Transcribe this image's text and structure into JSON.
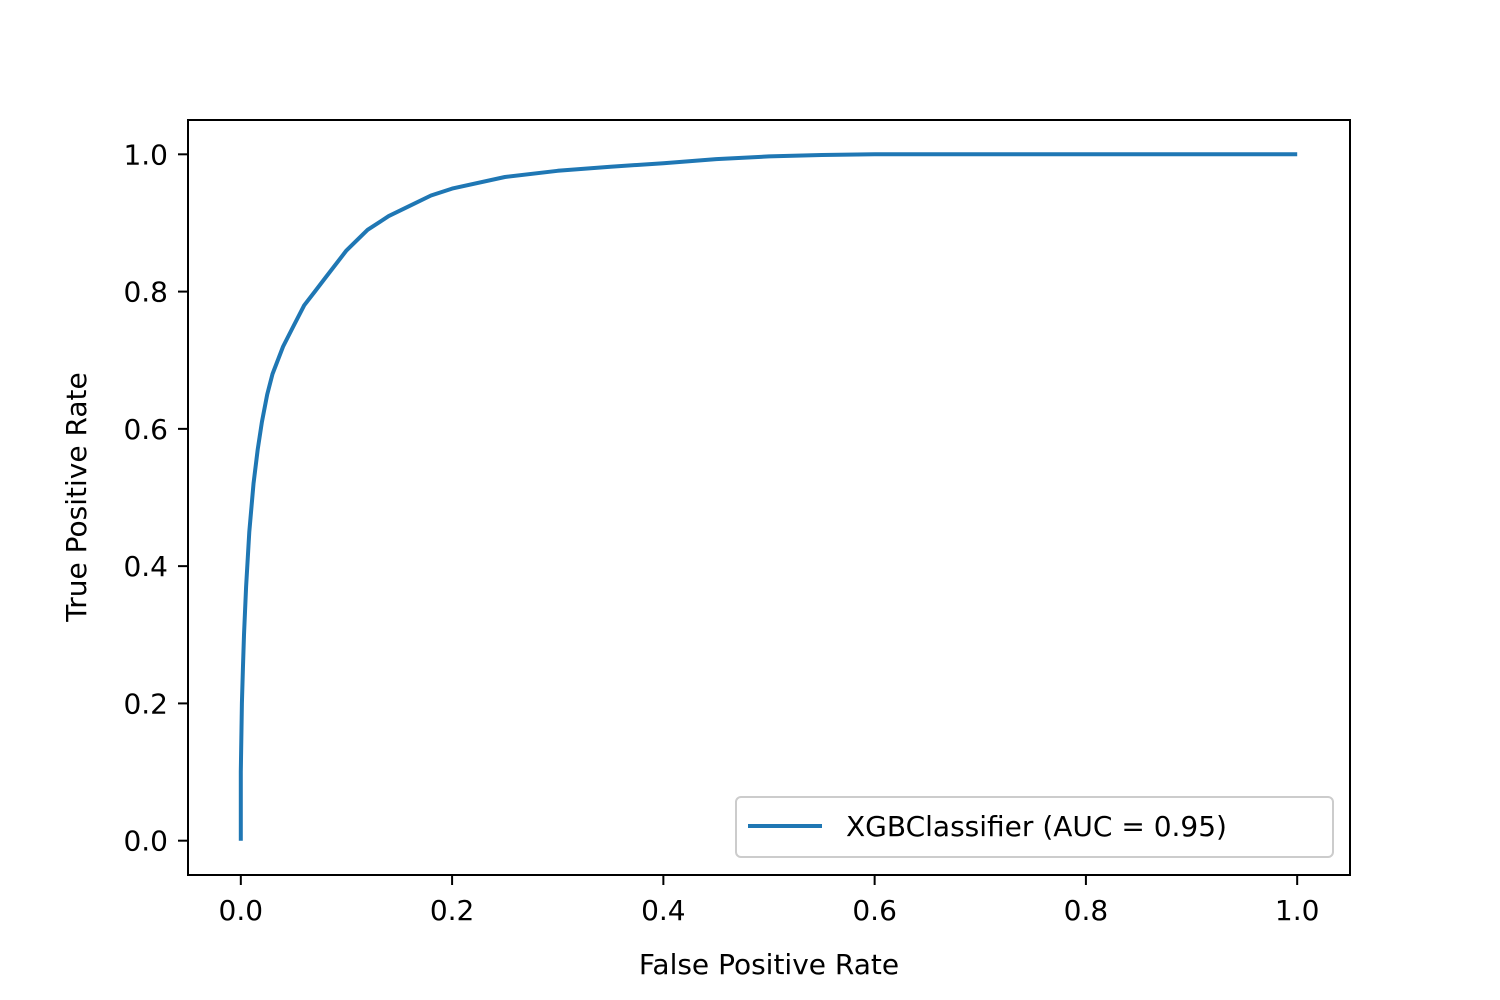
{
  "chart_data": {
    "type": "line",
    "title": "",
    "xlabel": "False Positive Rate",
    "ylabel": "True Positive Rate",
    "xlim": [
      -0.05,
      1.05
    ],
    "ylim": [
      -0.05,
      1.05
    ],
    "x_ticks": [
      0.0,
      0.2,
      0.4,
      0.6,
      0.8,
      1.0
    ],
    "y_ticks": [
      0.0,
      0.2,
      0.4,
      0.6,
      0.8,
      1.0
    ],
    "x_tick_labels": [
      "0.0",
      "0.2",
      "0.4",
      "0.6",
      "0.8",
      "1.0"
    ],
    "y_tick_labels": [
      "0.0",
      "0.2",
      "0.4",
      "0.6",
      "0.8",
      "1.0"
    ],
    "grid": false,
    "legend_position": "lower-right",
    "series": [
      {
        "name": "XGBClassifier (AUC = 0.95)",
        "color": "#1f77b4",
        "x": [
          0.0,
          0.0,
          0.001,
          0.002,
          0.003,
          0.005,
          0.008,
          0.012,
          0.016,
          0.02,
          0.025,
          0.03,
          0.04,
          0.05,
          0.06,
          0.07,
          0.08,
          0.1,
          0.12,
          0.14,
          0.16,
          0.18,
          0.2,
          0.25,
          0.3,
          0.35,
          0.4,
          0.45,
          0.5,
          0.55,
          0.6,
          0.7,
          0.8,
          0.9,
          1.0
        ],
        "y": [
          0.0,
          0.1,
          0.2,
          0.25,
          0.3,
          0.37,
          0.45,
          0.52,
          0.57,
          0.61,
          0.65,
          0.68,
          0.72,
          0.75,
          0.78,
          0.8,
          0.82,
          0.86,
          0.89,
          0.91,
          0.925,
          0.94,
          0.95,
          0.967,
          0.976,
          0.982,
          0.987,
          0.993,
          0.997,
          0.999,
          1.0,
          1.0,
          1.0,
          1.0,
          1.0
        ]
      }
    ]
  }
}
